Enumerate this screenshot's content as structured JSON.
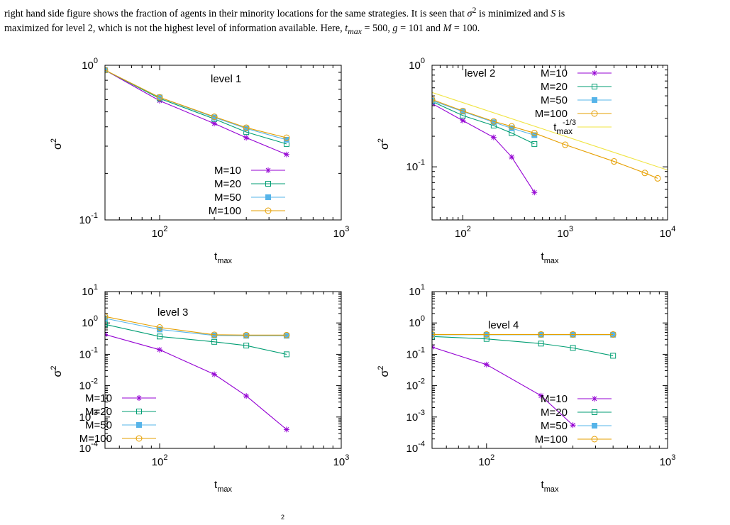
{
  "caption": {
    "line1_a": "right hand side figure shows the fraction of agents in their minority locations for the same strategies. It is seen that ",
    "line1_sigma": "σ",
    "line1_sup": "2",
    "line1_b": " is minimized and ",
    "line1_S": "S",
    "line1_c": " is",
    "line2_a": "maximized for level 2, which is not the highest level of information available. Here, ",
    "line2_t": "t",
    "line2_sub": "max",
    "line2_b": " = 500, ",
    "line2_g": "g",
    "line2_c": " = 101 and ",
    "line2_M": "M",
    "line2_d": " = 100."
  },
  "footer_fragment": "2",
  "colors": {
    "M=10": "#9400d3",
    "M=20": "#009e73",
    "M=50": "#56b4e9",
    "M=100": "#e69f00",
    "tmax": "#f0e442"
  },
  "chart_data": [
    {
      "type": "line",
      "panel_label": "level 1",
      "xlabel": "t_max",
      "ylabel": "σ^2",
      "xscale": "log",
      "yscale": "log",
      "xlim": [
        50,
        1000
      ],
      "ylim": [
        0.1,
        1
      ],
      "xticks": [
        {
          "v": 100,
          "b": "10",
          "e": "2"
        },
        {
          "v": 1000,
          "b": "10",
          "e": "3"
        }
      ],
      "yticks": [
        {
          "v": 0.1,
          "b": "10",
          "e": "-1"
        },
        {
          "v": 1,
          "b": "10",
          "e": "0"
        }
      ],
      "legend_position": "bottom-right",
      "series": [
        {
          "name": "M=10",
          "marker": "star",
          "x": [
            50,
            100,
            200,
            300,
            500
          ],
          "y": [
            0.93,
            0.59,
            0.42,
            0.34,
            0.265
          ]
        },
        {
          "name": "M=20",
          "marker": "square-open",
          "x": [
            50,
            100,
            200,
            300,
            500
          ],
          "y": [
            0.93,
            0.61,
            0.45,
            0.37,
            0.31
          ]
        },
        {
          "name": "M=50",
          "marker": "square-filled",
          "x": [
            50,
            100,
            200,
            300,
            500
          ],
          "y": [
            0.93,
            0.62,
            0.46,
            0.39,
            0.33
          ]
        },
        {
          "name": "M=100",
          "marker": "circle-open",
          "x": [
            50,
            100,
            200,
            300,
            500
          ],
          "y": [
            0.93,
            0.62,
            0.465,
            0.395,
            0.34
          ]
        }
      ]
    },
    {
      "type": "line",
      "panel_label": "level 2",
      "xlabel": "t_max",
      "ylabel": "σ^2",
      "xscale": "log",
      "yscale": "log",
      "xlim": [
        50,
        10000
      ],
      "ylim": [
        0.03,
        1
      ],
      "xticks": [
        {
          "v": 100,
          "b": "10",
          "e": "2"
        },
        {
          "v": 1000,
          "b": "10",
          "e": "3"
        },
        {
          "v": 10000,
          "b": "10",
          "e": "4"
        }
      ],
      "yticks": [
        {
          "v": 0.1,
          "b": "10",
          "e": "-1"
        },
        {
          "v": 1,
          "b": "10",
          "e": "0"
        }
      ],
      "legend_position": "top-right",
      "series": [
        {
          "name": "M=10",
          "marker": "star",
          "x": [
            50,
            100,
            200,
            300,
            500
          ],
          "y": [
            0.42,
            0.285,
            0.195,
            0.125,
            0.056
          ]
        },
        {
          "name": "M=20",
          "marker": "square-open",
          "x": [
            50,
            100,
            200,
            300,
            500
          ],
          "y": [
            0.44,
            0.32,
            0.255,
            0.215,
            0.168
          ]
        },
        {
          "name": "M=50",
          "marker": "square-filled",
          "x": [
            50,
            100,
            200,
            300,
            500
          ],
          "y": [
            0.45,
            0.35,
            0.275,
            0.24,
            0.205
          ]
        },
        {
          "name": "M=100",
          "marker": "circle-open",
          "x": [
            50,
            100,
            200,
            300,
            500,
            1000,
            3000,
            6000,
            8000
          ],
          "y": [
            0.46,
            0.355,
            0.28,
            0.25,
            0.215,
            0.165,
            0.113,
            0.087,
            0.077
          ]
        },
        {
          "name": "tmax",
          "label_base": "t",
          "label_sub": "max",
          "label_sup": "-1/3",
          "marker": "none",
          "x": [
            50,
            10000
          ],
          "y": [
            0.54,
            0.093
          ]
        }
      ]
    },
    {
      "type": "line",
      "panel_label": "level 3",
      "xlabel": "t_max",
      "ylabel": "σ^2",
      "xscale": "log",
      "yscale": "log",
      "xlim": [
        50,
        1000
      ],
      "ylim": [
        0.0001,
        10
      ],
      "xticks": [
        {
          "v": 100,
          "b": "10",
          "e": "2"
        },
        {
          "v": 1000,
          "b": "10",
          "e": "3"
        }
      ],
      "yticks": [
        {
          "v": 0.0001,
          "b": "10",
          "e": "-4"
        },
        {
          "v": 0.001,
          "b": "10",
          "e": "-3"
        },
        {
          "v": 0.01,
          "b": "10",
          "e": "-2"
        },
        {
          "v": 0.1,
          "b": "10",
          "e": "-1"
        },
        {
          "v": 1,
          "b": "10",
          "e": "0"
        },
        {
          "v": 10,
          "b": "10",
          "e": "1"
        }
      ],
      "legend_position": "bottom-left",
      "series": [
        {
          "name": "M=10",
          "marker": "star",
          "x": [
            50,
            100,
            200,
            300,
            500
          ],
          "y": [
            0.43,
            0.14,
            0.023,
            0.0047,
            0.0004
          ]
        },
        {
          "name": "M=20",
          "marker": "square-open",
          "x": [
            50,
            100,
            200,
            300,
            500
          ],
          "y": [
            0.9,
            0.37,
            0.25,
            0.19,
            0.1
          ]
        },
        {
          "name": "M=50",
          "marker": "square-filled",
          "x": [
            50,
            100,
            200,
            300,
            500
          ],
          "y": [
            1.4,
            0.62,
            0.4,
            0.39,
            0.39
          ]
        },
        {
          "name": "M=100",
          "marker": "circle-open",
          "x": [
            50,
            100,
            200,
            300,
            500
          ],
          "y": [
            1.6,
            0.72,
            0.42,
            0.41,
            0.41
          ]
        }
      ]
    },
    {
      "type": "line",
      "panel_label": "level 4",
      "xlabel": "t_max",
      "ylabel": "σ^2",
      "xscale": "log",
      "yscale": "log",
      "xlim": [
        50,
        1000
      ],
      "ylim": [
        0.0001,
        10
      ],
      "xticks": [
        {
          "v": 100,
          "b": "10",
          "e": "2"
        },
        {
          "v": 1000,
          "b": "10",
          "e": "3"
        }
      ],
      "yticks": [
        {
          "v": 0.0001,
          "b": "10",
          "e": "-4"
        },
        {
          "v": 0.001,
          "b": "10",
          "e": "-3"
        },
        {
          "v": 0.01,
          "b": "10",
          "e": "-2"
        },
        {
          "v": 0.1,
          "b": "10",
          "e": "-1"
        },
        {
          "v": 1,
          "b": "10",
          "e": "0"
        },
        {
          "v": 10,
          "b": "10",
          "e": "1"
        }
      ],
      "legend_position": "bottom-right",
      "series": [
        {
          "name": "M=10",
          "marker": "star",
          "x": [
            50,
            100,
            200,
            300
          ],
          "y": [
            0.17,
            0.047,
            0.0048,
            0.00055
          ]
        },
        {
          "name": "M=20",
          "marker": "square-open",
          "x": [
            50,
            100,
            200,
            300,
            500
          ],
          "y": [
            0.37,
            0.31,
            0.22,
            0.16,
            0.09
          ]
        },
        {
          "name": "M=50",
          "marker": "square-filled",
          "x": [
            50,
            100,
            200,
            300,
            500
          ],
          "y": [
            0.42,
            0.42,
            0.42,
            0.42,
            0.42
          ]
        },
        {
          "name": "M=100",
          "marker": "circle-open",
          "x": [
            50,
            100,
            200,
            300,
            500
          ],
          "y": [
            0.43,
            0.43,
            0.43,
            0.43,
            0.43
          ]
        }
      ]
    }
  ]
}
